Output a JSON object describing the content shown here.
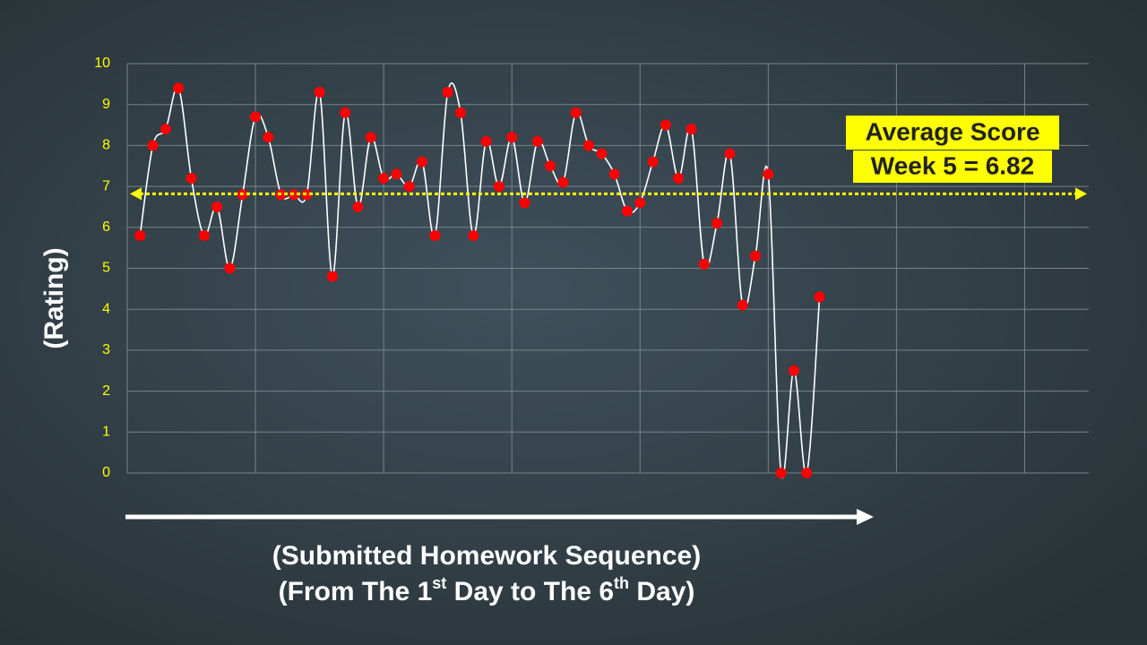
{
  "chart_data": {
    "type": "line",
    "ylabel": "(Rating)",
    "xlabel": [
      "(Submitted Homework Sequence)",
      [
        "(From The 1",
        "st",
        " Day to The 6",
        "th",
        " Day)"
      ]
    ],
    "x": [
      1,
      2,
      3,
      4,
      5,
      6,
      7,
      8,
      9,
      10,
      11,
      12,
      13,
      14,
      15,
      16,
      17,
      18,
      19,
      20,
      21,
      22,
      23,
      24,
      25,
      26,
      27,
      28,
      29,
      30,
      31,
      32,
      33,
      34,
      35,
      36,
      37,
      38,
      39,
      40,
      41,
      42,
      43,
      44,
      45,
      46,
      47,
      48,
      49,
      50,
      51,
      52,
      53,
      54
    ],
    "values": [
      5.8,
      8.0,
      8.4,
      9.4,
      7.2,
      5.8,
      6.5,
      5.0,
      6.8,
      8.7,
      8.2,
      6.8,
      6.8,
      6.8,
      9.3,
      4.8,
      8.8,
      6.5,
      8.2,
      7.2,
      7.3,
      7.0,
      7.6,
      5.8,
      9.3,
      8.8,
      5.8,
      8.1,
      7.0,
      8.2,
      6.6,
      8.1,
      7.5,
      7.1,
      8.8,
      8.0,
      7.8,
      7.3,
      6.4,
      6.6,
      7.6,
      8.5,
      7.2,
      8.4,
      5.1,
      6.1,
      7.8,
      4.1,
      5.3,
      7.3,
      0.0,
      2.5,
      0.0,
      4.3
    ],
    "line_color": "#ffffff",
    "marker_color": "#ff0000",
    "xlim": [
      0,
      75
    ],
    "xticks": [
      0,
      10,
      20,
      30,
      40,
      50,
      60,
      70
    ],
    "ylim": [
      0,
      10
    ],
    "yticks": [
      0,
      1,
      2,
      3,
      4,
      5,
      6,
      7,
      8,
      9,
      10
    ],
    "grid": true,
    "average": {
      "value": 6.82,
      "label": [
        "Average Score",
        "Week 5 = 6.82"
      ],
      "color": "#ffff00"
    }
  }
}
